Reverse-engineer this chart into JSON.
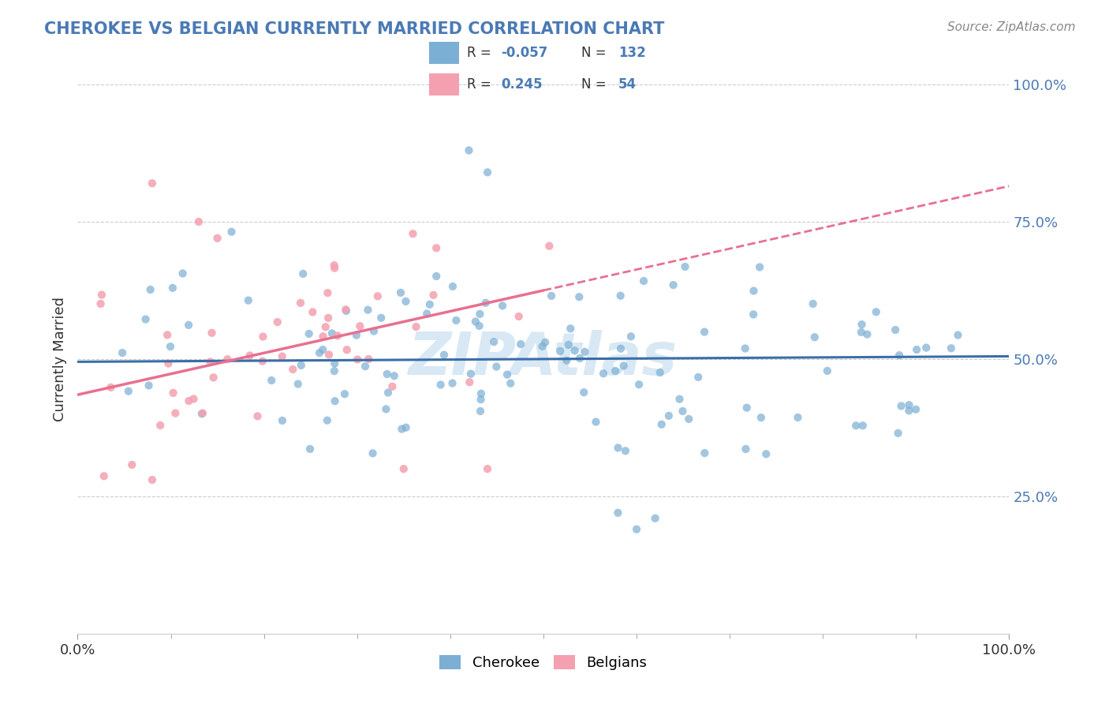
{
  "title": "CHEROKEE VS BELGIAN CURRENTLY MARRIED CORRELATION CHART",
  "source": "Source: ZipAtlas.com",
  "ylabel": "Currently Married",
  "cherokee_R": -0.057,
  "cherokee_N": 132,
  "belgian_R": 0.245,
  "belgian_N": 54,
  "cherokee_color": "#7BAFD4",
  "belgian_color": "#F4A0B0",
  "cherokee_trend_color": "#3A6EA8",
  "belgian_trend_color": "#E87090",
  "background_color": "#ffffff",
  "grid_color": "#cccccc",
  "title_color": "#4a7ab5",
  "tick_color": "#4a7ab5",
  "watermark_color": "#d8e8f4",
  "legend_border_color": "#cccccc"
}
